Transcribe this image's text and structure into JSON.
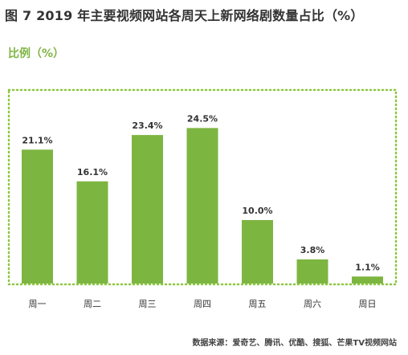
{
  "title": "图 7  2019 年主要视频网站各周天上新网络剧数量占比（%）",
  "ylabel": "比例（%）",
  "source": "数据来源：爱奇艺、腾讯、优酷、搜狐、芒果TV视频网站",
  "colors": {
    "bar": "#7db541",
    "frame": "#8cc63f",
    "text": "#333333"
  },
  "chart_data": {
    "type": "bar",
    "title": "图 7  2019 年主要视频网站各周天上新网络剧数量占比（%）",
    "ylabel": "比例（%）",
    "xlabel": "",
    "categories": [
      "周一",
      "周二",
      "周三",
      "周四",
      "周五",
      "周六",
      "周日"
    ],
    "values": [
      21.1,
      16.1,
      23.4,
      24.5,
      10.0,
      3.8,
      1.1
    ],
    "value_labels": [
      "21.1%",
      "16.1%",
      "23.4%",
      "24.5%",
      "10.0%",
      "3.8%",
      "1.1%"
    ],
    "ylim": [
      0,
      30
    ],
    "grid": false,
    "legend": "none"
  }
}
